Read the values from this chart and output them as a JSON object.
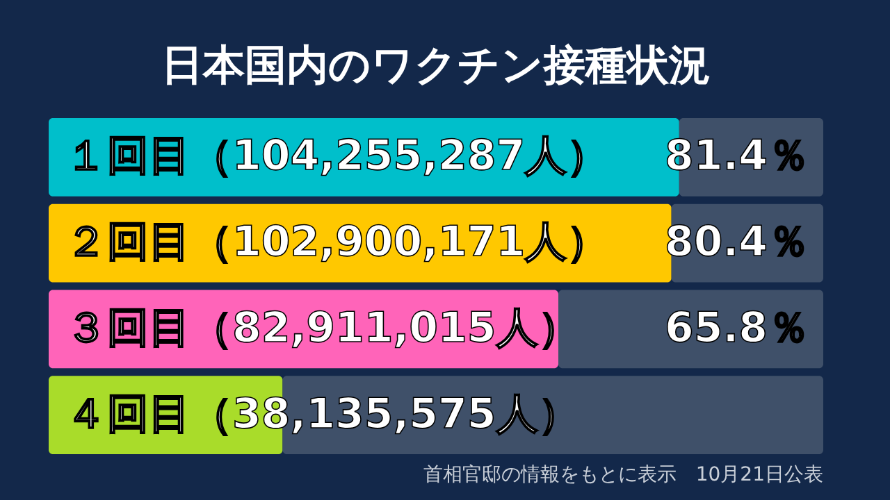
{
  "chart_data": {
    "type": "bar",
    "orientation": "horizontal",
    "stacked": true,
    "title": "日本国内のワクチン接種状況",
    "categories": [
      "１回目（104,255,287人）",
      "２回目（102,900,171人）",
      "３回目（82,911,015人）",
      "４回目（38,135,575人）"
    ],
    "series": [
      {
        "colors": [
          "#00bfcb",
          "#ffc800",
          "#ff64b9",
          "#a9dc2a"
        ],
        "values": [
          81.4,
          80.4,
          65.8,
          30.2
        ],
        "value_labels": [
          "81.4％",
          "80.4％",
          "65.8％",
          null
        ]
      },
      {
        "color": "#3f5069",
        "values": [
          18.6,
          19.6,
          34.2,
          69.8
        ]
      }
    ],
    "xlim": [
      0,
      100
    ],
    "annotations": [
      "首相官邸の情報をもとに表示　10月21日公表"
    ]
  }
}
